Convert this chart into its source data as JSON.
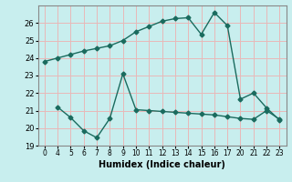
{
  "line1_x_labels": [
    0,
    4,
    5,
    6,
    7,
    8,
    9,
    10,
    11,
    12,
    13,
    14,
    15,
    16,
    17,
    20,
    21,
    22,
    23
  ],
  "line1_y": [
    23.8,
    24.0,
    24.2,
    24.4,
    24.55,
    24.7,
    25.0,
    25.5,
    25.8,
    26.1,
    26.25,
    26.3,
    25.35,
    26.6,
    25.85,
    21.65,
    22.0,
    21.15,
    20.45
  ],
  "line2_x_labels": [
    4,
    5,
    6,
    7,
    8,
    9,
    10,
    11,
    12,
    13,
    14,
    15,
    16,
    17,
    20,
    21,
    22,
    23
  ],
  "line2_y": [
    21.2,
    20.6,
    19.85,
    19.45,
    20.55,
    23.1,
    21.05,
    21.0,
    20.95,
    20.9,
    20.85,
    20.8,
    20.75,
    20.65,
    20.55,
    20.5,
    21.0,
    20.5
  ],
  "all_x_labels": [
    0,
    4,
    5,
    6,
    7,
    8,
    9,
    10,
    11,
    12,
    13,
    14,
    15,
    16,
    17,
    20,
    21,
    22,
    23
  ],
  "line_color": "#1a6b5e",
  "bg_color": "#c8eeee",
  "grid_color": "#e8b8b8",
  "xlabel": "Humidex (Indice chaleur)",
  "ylim": [
    19,
    27
  ],
  "yticks": [
    19,
    20,
    21,
    22,
    23,
    24,
    25,
    26
  ],
  "marker": "D",
  "markersize": 2.5,
  "linewidth": 1.0
}
